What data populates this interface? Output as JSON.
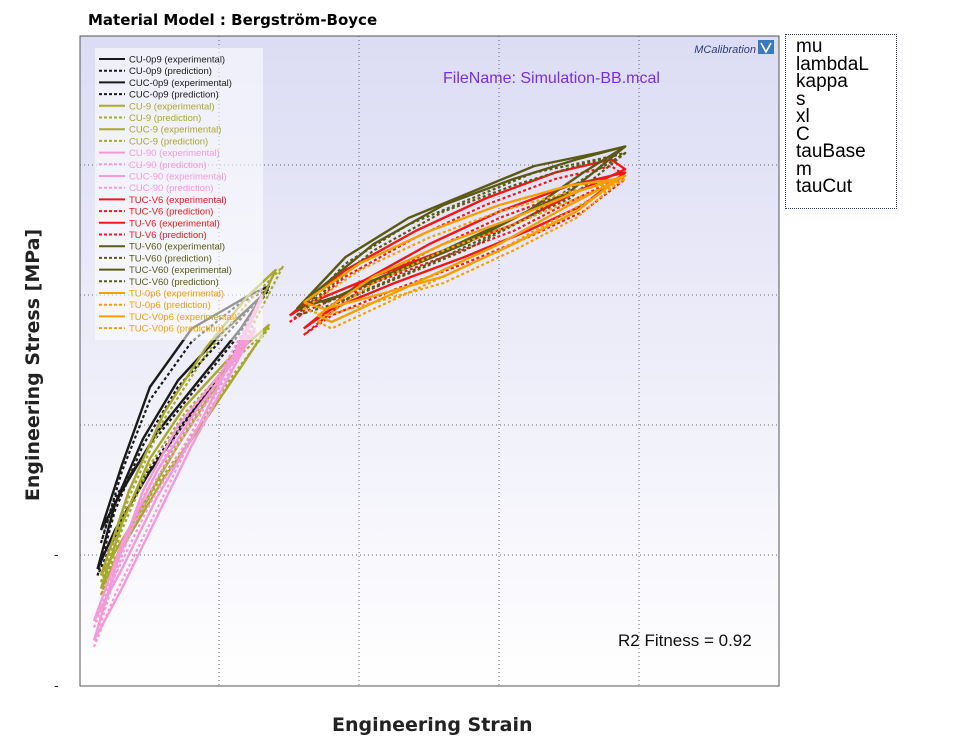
{
  "title": "Material Model : Bergström-Boyce",
  "parameters": [
    "mu",
    "lambdaL",
    "kappa",
    "s",
    "xl",
    "C",
    "tauBase",
    "m",
    "tauCut"
  ],
  "annotations": {
    "filename": "FileName: Simulation-BB.mcal",
    "r2": "R2 Fitness = 0.92",
    "brand": "MCalibration"
  },
  "colors": {
    "black": "#1a1a1a",
    "olive": "#a8a82a",
    "pink": "#f49ad8",
    "red": "#f01818",
    "darkolive": "#5a5a14",
    "orange": "#f5a000",
    "filename": "#7b2fe0",
    "plot_bg_top": "#dcdcf4",
    "plot_bg_bottom": "#ffffff"
  },
  "chart_data": {
    "type": "line",
    "title": "Material Model : Bergström-Boyce",
    "xlabel": "Engineering Strain",
    "ylabel": "Engineering Stress [MPa]",
    "x_tick_labels": [],
    "y_tick_labels": [
      "-",
      "-"
    ],
    "grid": true,
    "legend_position": "top-left",
    "units_note": "axes carry no numeric tick values; curve values are given in normalized plot units (x and y both 0 to 1)",
    "series": [
      {
        "name": "CU-0p9 (experimental)",
        "color": "black",
        "dash": "solid",
        "x": [
          0.03,
          0.06,
          0.1,
          0.16,
          0.24,
          0.27,
          0.23,
          0.17,
          0.11,
          0.06,
          0.03
        ],
        "y": [
          0.24,
          0.34,
          0.46,
          0.55,
          0.6,
          0.615,
          0.55,
          0.47,
          0.39,
          0.3,
          0.24
        ]
      },
      {
        "name": "CU-0p9 (prediction)",
        "color": "black",
        "dash": "dot",
        "x": [
          0.03,
          0.06,
          0.1,
          0.16,
          0.23,
          0.27,
          0.22,
          0.16,
          0.1,
          0.05,
          0.03
        ],
        "y": [
          0.22,
          0.33,
          0.44,
          0.53,
          0.59,
          0.61,
          0.53,
          0.45,
          0.37,
          0.29,
          0.22
        ]
      },
      {
        "name": "CUC-0p9 (experimental)",
        "color": "black",
        "dash": "solid",
        "x": [
          0.025,
          0.05,
          0.09,
          0.14,
          0.2,
          0.26,
          0.22,
          0.16,
          0.1,
          0.05,
          0.025
        ],
        "y": [
          0.18,
          0.28,
          0.38,
          0.47,
          0.54,
          0.6,
          0.5,
          0.42,
          0.33,
          0.24,
          0.18
        ]
      },
      {
        "name": "CUC-0p9 (prediction)",
        "color": "black",
        "dash": "dot",
        "x": [
          0.025,
          0.05,
          0.09,
          0.14,
          0.2,
          0.26,
          0.21,
          0.15,
          0.09,
          0.05,
          0.025
        ],
        "y": [
          0.17,
          0.27,
          0.37,
          0.46,
          0.53,
          0.6,
          0.49,
          0.41,
          0.32,
          0.23,
          0.17
        ]
      },
      {
        "name": "CU-9 (experimental)",
        "color": "olive",
        "dash": "solid",
        "x": [
          0.03,
          0.06,
          0.1,
          0.15,
          0.21,
          0.27,
          0.23,
          0.18,
          0.12,
          0.07,
          0.03
        ],
        "y": [
          0.15,
          0.25,
          0.35,
          0.43,
          0.5,
          0.555,
          0.49,
          0.41,
          0.32,
          0.23,
          0.15
        ]
      },
      {
        "name": "CU-9 (prediction)",
        "color": "olive",
        "dash": "dot",
        "x": [
          0.03,
          0.06,
          0.1,
          0.15,
          0.21,
          0.27,
          0.22,
          0.17,
          0.11,
          0.06,
          0.03
        ],
        "y": [
          0.14,
          0.24,
          0.34,
          0.42,
          0.49,
          0.55,
          0.48,
          0.4,
          0.31,
          0.22,
          0.14
        ]
      },
      {
        "name": "CUC-9 (experimental)",
        "color": "olive",
        "dash": "solid",
        "x": [
          0.03,
          0.07,
          0.12,
          0.18,
          0.24,
          0.28,
          0.24,
          0.2,
          0.14,
          0.08,
          0.03
        ],
        "y": [
          0.17,
          0.3,
          0.42,
          0.52,
          0.6,
          0.64,
          0.55,
          0.47,
          0.37,
          0.26,
          0.17
        ]
      },
      {
        "name": "CUC-9 (prediction)",
        "color": "olive",
        "dash": "dot",
        "x": [
          0.03,
          0.07,
          0.12,
          0.18,
          0.24,
          0.29,
          0.24,
          0.19,
          0.13,
          0.08,
          0.03
        ],
        "y": [
          0.16,
          0.29,
          0.41,
          0.51,
          0.59,
          0.645,
          0.54,
          0.46,
          0.36,
          0.25,
          0.16
        ]
      },
      {
        "name": "CU-90 (experimental)",
        "color": "pink",
        "dash": "solid",
        "x": [
          0.02,
          0.05,
          0.09,
          0.14,
          0.2,
          0.25,
          0.21,
          0.16,
          0.11,
          0.06,
          0.02
        ],
        "y": [
          0.07,
          0.18,
          0.3,
          0.4,
          0.48,
          0.55,
          0.47,
          0.37,
          0.26,
          0.15,
          0.07
        ]
      },
      {
        "name": "CU-90 (prediction)",
        "color": "pink",
        "dash": "dot",
        "x": [
          0.02,
          0.05,
          0.09,
          0.14,
          0.2,
          0.25,
          0.2,
          0.15,
          0.1,
          0.05,
          0.02
        ],
        "y": [
          0.06,
          0.17,
          0.29,
          0.39,
          0.47,
          0.545,
          0.46,
          0.36,
          0.25,
          0.14,
          0.06
        ]
      },
      {
        "name": "CUC-90 (experimental)",
        "color": "pink",
        "dash": "solid",
        "x": [
          0.02,
          0.06,
          0.11,
          0.17,
          0.22,
          0.26,
          0.22,
          0.17,
          0.11,
          0.06,
          0.02
        ],
        "y": [
          0.1,
          0.22,
          0.33,
          0.43,
          0.5,
          0.6,
          0.51,
          0.4,
          0.29,
          0.18,
          0.1
        ]
      },
      {
        "name": "CUC-90 (prediction)",
        "color": "pink",
        "dash": "dot",
        "x": [
          0.02,
          0.06,
          0.11,
          0.17,
          0.22,
          0.26,
          0.21,
          0.16,
          0.1,
          0.05,
          0.02
        ],
        "y": [
          0.09,
          0.21,
          0.32,
          0.42,
          0.49,
          0.595,
          0.5,
          0.39,
          0.28,
          0.17,
          0.09
        ]
      },
      {
        "name": "TUC-V6 (experimental)",
        "color": "red",
        "dash": "solid",
        "x": [
          0.3,
          0.38,
          0.48,
          0.58,
          0.68,
          0.76,
          0.78,
          0.71,
          0.62,
          0.52,
          0.42,
          0.33,
          0.3
        ],
        "y": [
          0.57,
          0.64,
          0.7,
          0.75,
          0.79,
          0.81,
          0.795,
          0.76,
          0.71,
          0.67,
          0.63,
          0.59,
          0.57
        ]
      },
      {
        "name": "TUC-V6 (prediction)",
        "color": "red",
        "dash": "dot",
        "x": [
          0.3,
          0.38,
          0.48,
          0.58,
          0.68,
          0.76,
          0.78,
          0.71,
          0.62,
          0.52,
          0.42,
          0.33,
          0.3
        ],
        "y": [
          0.56,
          0.63,
          0.69,
          0.74,
          0.78,
          0.8,
          0.785,
          0.75,
          0.7,
          0.66,
          0.62,
          0.58,
          0.56
        ]
      },
      {
        "name": "TU-V6 (experimental)",
        "color": "red",
        "dash": "solid",
        "x": [
          0.32,
          0.4,
          0.5,
          0.6,
          0.7,
          0.78,
          0.72,
          0.64,
          0.55,
          0.45,
          0.36,
          0.32
        ],
        "y": [
          0.55,
          0.62,
          0.68,
          0.73,
          0.77,
          0.79,
          0.74,
          0.7,
          0.66,
          0.62,
          0.58,
          0.55
        ]
      },
      {
        "name": "TU-V6 (prediction)",
        "color": "red",
        "dash": "dot",
        "x": [
          0.32,
          0.4,
          0.5,
          0.6,
          0.7,
          0.78,
          0.72,
          0.64,
          0.55,
          0.45,
          0.36,
          0.32
        ],
        "y": [
          0.54,
          0.61,
          0.67,
          0.72,
          0.76,
          0.78,
          0.73,
          0.69,
          0.65,
          0.61,
          0.57,
          0.54
        ]
      },
      {
        "name": "TU-V60 (experimental)",
        "color": "darkolive",
        "dash": "solid",
        "x": [
          0.31,
          0.38,
          0.47,
          0.56,
          0.65,
          0.74,
          0.78,
          0.72,
          0.64,
          0.55,
          0.46,
          0.37,
          0.31
        ],
        "y": [
          0.58,
          0.66,
          0.72,
          0.76,
          0.8,
          0.82,
          0.83,
          0.79,
          0.73,
          0.68,
          0.64,
          0.6,
          0.58
        ]
      },
      {
        "name": "TU-V60 (prediction)",
        "color": "darkolive",
        "dash": "dot",
        "x": [
          0.31,
          0.38,
          0.47,
          0.56,
          0.65,
          0.74,
          0.78,
          0.72,
          0.64,
          0.55,
          0.46,
          0.37,
          0.31
        ],
        "y": [
          0.57,
          0.65,
          0.71,
          0.75,
          0.79,
          0.81,
          0.82,
          0.78,
          0.72,
          0.67,
          0.63,
          0.59,
          0.57
        ]
      },
      {
        "name": "TUC-V60 (experimental)",
        "color": "darkolive",
        "dash": "solid",
        "x": [
          0.33,
          0.42,
          0.52,
          0.62,
          0.71,
          0.78,
          0.7,
          0.6,
          0.5,
          0.41,
          0.35,
          0.33
        ],
        "y": [
          0.6,
          0.68,
          0.74,
          0.78,
          0.81,
          0.83,
          0.76,
          0.71,
          0.66,
          0.62,
          0.59,
          0.6
        ]
      },
      {
        "name": "TUC-V60 (prediction)",
        "color": "darkolive",
        "dash": "dot",
        "x": [
          0.33,
          0.42,
          0.52,
          0.62,
          0.71,
          0.78,
          0.7,
          0.6,
          0.5,
          0.41,
          0.35,
          0.33
        ],
        "y": [
          0.59,
          0.67,
          0.73,
          0.77,
          0.8,
          0.82,
          0.75,
          0.7,
          0.65,
          0.61,
          0.58,
          0.59
        ]
      },
      {
        "name": "TU-0p6 (experimental)",
        "color": "orange",
        "dash": "solid",
        "x": [
          0.32,
          0.4,
          0.5,
          0.6,
          0.7,
          0.77,
          0.71,
          0.62,
          0.52,
          0.42,
          0.35,
          0.32
        ],
        "y": [
          0.59,
          0.65,
          0.7,
          0.74,
          0.77,
          0.78,
          0.73,
          0.68,
          0.63,
          0.6,
          0.58,
          0.59
        ]
      },
      {
        "name": "TU-0p6 (prediction)",
        "color": "orange",
        "dash": "dot",
        "x": [
          0.32,
          0.4,
          0.5,
          0.6,
          0.7,
          0.77,
          0.71,
          0.62,
          0.52,
          0.42,
          0.35,
          0.32
        ],
        "y": [
          0.58,
          0.64,
          0.69,
          0.73,
          0.76,
          0.775,
          0.72,
          0.67,
          0.62,
          0.59,
          0.57,
          0.58
        ]
      },
      {
        "name": "TUC-V0p6 (experimental)",
        "color": "orange",
        "dash": "solid",
        "x": [
          0.34,
          0.42,
          0.52,
          0.62,
          0.71,
          0.78,
          0.7,
          0.6,
          0.5,
          0.42,
          0.36,
          0.34
        ],
        "y": [
          0.57,
          0.63,
          0.68,
          0.72,
          0.76,
          0.785,
          0.74,
          0.68,
          0.63,
          0.59,
          0.56,
          0.57
        ]
      },
      {
        "name": "TUC-V0p6 (prediction)",
        "color": "orange",
        "dash": "dot",
        "x": [
          0.34,
          0.42,
          0.52,
          0.62,
          0.71,
          0.78,
          0.7,
          0.6,
          0.5,
          0.42,
          0.36,
          0.34
        ],
        "y": [
          0.56,
          0.62,
          0.67,
          0.71,
          0.75,
          0.78,
          0.73,
          0.67,
          0.62,
          0.58,
          0.55,
          0.56
        ]
      }
    ]
  }
}
